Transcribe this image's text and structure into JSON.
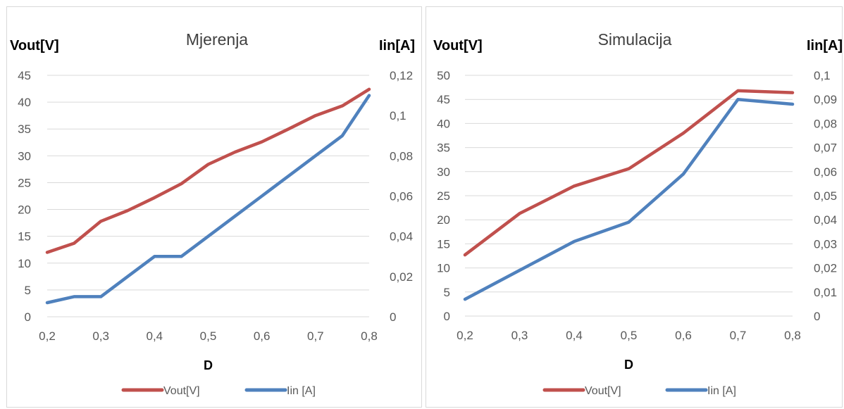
{
  "chart_data": [
    {
      "type": "line",
      "title": "Mjerenja",
      "xlabel": "D",
      "ylabel": "Vout[V]",
      "y2label": "Iin[A]",
      "x": [
        0.2,
        0.25,
        0.3,
        0.35,
        0.4,
        0.45,
        0.5,
        0.55,
        0.6,
        0.65,
        0.7,
        0.75,
        0.8
      ],
      "x_ticks": [
        "0,2",
        "0,3",
        "0,4",
        "0,5",
        "0,6",
        "0,7",
        "0,8"
      ],
      "xlim": [
        0.2,
        0.8
      ],
      "ylim": [
        0,
        45
      ],
      "y_ticks": [
        "0",
        "5",
        "10",
        "15",
        "20",
        "25",
        "30",
        "35",
        "40",
        "45"
      ],
      "y2lim": [
        0,
        0.12
      ],
      "y2_ticks": [
        "0",
        "0,02",
        "0,04",
        "0,06",
        "0,08",
        "0,1",
        "0,12"
      ],
      "grid": true,
      "legend_position": "bottom",
      "series": [
        {
          "name": "Vout[V]",
          "axis": "left",
          "color": "#c0504d",
          "values": [
            12,
            13.7,
            17.8,
            19.8,
            22.2,
            24.8,
            28.4,
            30.7,
            32.6,
            35,
            37.5,
            39.3,
            42.4
          ]
        },
        {
          "name": "Iin [A]",
          "axis": "right",
          "color": "#4f81bd",
          "values": [
            0.007,
            0.01,
            0.01,
            0.02,
            0.03,
            0.03,
            0.04,
            0.05,
            0.06,
            0.07,
            0.08,
            0.09,
            0.11
          ]
        }
      ]
    },
    {
      "type": "line",
      "title": "Simulacija",
      "xlabel": "D",
      "ylabel": "Vout[V]",
      "y2label": "Iin[A]",
      "x": [
        0.2,
        0.3,
        0.4,
        0.5,
        0.6,
        0.7,
        0.8
      ],
      "x_ticks": [
        "0,2",
        "0,3",
        "0,4",
        "0,5",
        "0,6",
        "0,7",
        "0,8"
      ],
      "xlim": [
        0.2,
        0.8
      ],
      "ylim": [
        0,
        50
      ],
      "y_ticks": [
        "0",
        "5",
        "10",
        "15",
        "20",
        "25",
        "30",
        "35",
        "40",
        "45",
        "50"
      ],
      "y2lim": [
        0,
        0.1
      ],
      "y2_ticks": [
        "0",
        "0,01",
        "0,02",
        "0,03",
        "0,04",
        "0,05",
        "0,06",
        "0,07",
        "0,08",
        "0,09",
        "0,1"
      ],
      "grid": true,
      "legend_position": "bottom",
      "series": [
        {
          "name": "Vout[V]",
          "axis": "left",
          "color": "#c0504d",
          "values": [
            12.7,
            21.3,
            27,
            30.6,
            38,
            46.8,
            46.4
          ]
        },
        {
          "name": "Iin [A]",
          "axis": "right",
          "color": "#4f81bd",
          "values": [
            0.007,
            0.019,
            0.031,
            0.039,
            0.059,
            0.09,
            0.088
          ]
        }
      ]
    }
  ]
}
